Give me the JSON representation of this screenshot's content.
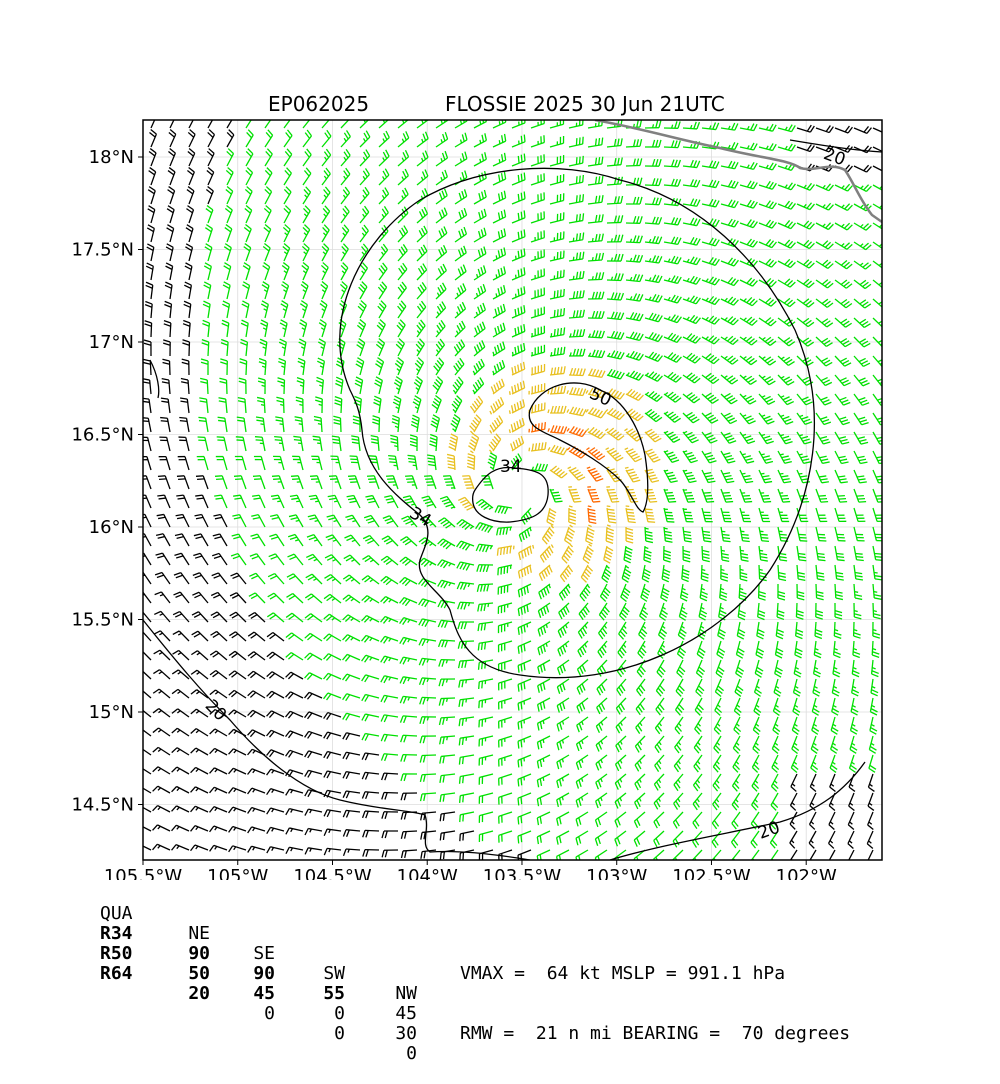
{
  "title": {
    "storm_id": "EP062025",
    "storm_info": "FLOSSIE 2025 30 Jun 21UTC"
  },
  "axes": {
    "x_ticks": [
      "105.5°W",
      "105°W",
      "104.5°W",
      "104°W",
      "103.5°W",
      "103°W",
      "102.5°W",
      "102°W"
    ],
    "y_ticks": [
      "18°N",
      "17.5°N",
      "17°N",
      "16.5°N",
      "16°N",
      "15.5°N",
      "15°N",
      "14.5°N"
    ],
    "lon_range": [
      -105.5,
      -101.6
    ],
    "lat_range": [
      14.2,
      18.2
    ]
  },
  "contour_labels": {
    "c34": "34",
    "c50": "50",
    "c20_ne": "20",
    "c20_sw": "20",
    "c20_se": "20"
  },
  "wind_colors": {
    "below_34": "#000000",
    "r34": "#00e000",
    "r50": "#e8c020",
    "r64": "#ff6a00",
    "coastline": "#808080"
  },
  "radii_table": {
    "header": [
      "QUA",
      "NE",
      "SE",
      "SW",
      "NW"
    ],
    "rows": [
      {
        "label": "R34",
        "ne": "90",
        "se": "90",
        "sw": "55",
        "nw": "45"
      },
      {
        "label": "R50",
        "ne": "50",
        "se": "45",
        "sw": "0",
        "nw": "30"
      },
      {
        "label": "R64",
        "ne": "20",
        "se": "0",
        "sw": "0",
        "nw": "0"
      }
    ]
  },
  "stats": {
    "line1": "VMAX =  64 kt MSLP = 991.1 hPa",
    "line2": "RMW =  21 n mi BEARING =  70 degrees"
  },
  "storm": {
    "center_lon": -103.5,
    "center_lat": 16.2,
    "vmax_kt": 64,
    "mslp_hpa": 991.1,
    "rmw_nmi": 21,
    "bearing_deg": 70
  }
}
